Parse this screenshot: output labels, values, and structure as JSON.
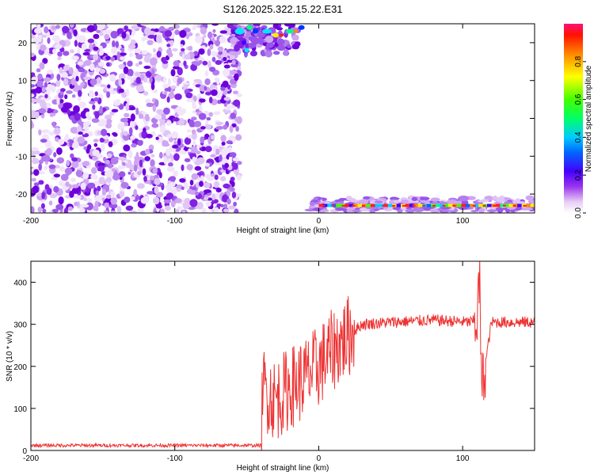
{
  "chart_data": [
    {
      "type": "heatmap",
      "title": "S126.2025.322.15.22.E31",
      "xlabel": "Height of straight line (km)",
      "ylabel": "Frequency (Hz)",
      "xlim": [
        -200,
        150
      ],
      "ylim": [
        -25,
        25
      ],
      "xticks": [
        -200,
        -100,
        0,
        100
      ],
      "yticks": [
        -20,
        -10,
        0,
        10,
        20
      ],
      "colorbar": {
        "label": "Normalized spectral amplitude",
        "range": [
          0,
          1
        ],
        "ticks": [
          0.0,
          0.2,
          0.4,
          0.6,
          0.8
        ]
      },
      "regions": [
        {
          "x_range": [
            -200,
            -55
          ],
          "f_range": [
            -25,
            25
          ],
          "amplitude": "low (0.05-0.2)"
        },
        {
          "x_range": [
            -60,
            -10
          ],
          "f_range": [
            18,
            25
          ],
          "amplitude": "up to 0.9"
        },
        {
          "x_range": [
            -5,
            150
          ],
          "f_range": [
            -25,
            -21
          ],
          "amplitude": "up to 0.9"
        }
      ],
      "colors": {
        "low": "#cc99ee",
        "mid": "#7b00e0",
        "high": "#ff2020"
      }
    },
    {
      "type": "line",
      "xlabel": "Height of straight line (km)",
      "ylabel": "SNR (10 * v/v)",
      "xlim": [
        -200,
        150
      ],
      "ylim": [
        0,
        450
      ],
      "xticks": [
        -200,
        -100,
        0,
        100
      ],
      "yticks": [
        0,
        100,
        200,
        300,
        400
      ],
      "color": "#ee3333",
      "series_trend": [
        {
          "x": -200,
          "y": 12
        },
        {
          "x": -100,
          "y": 12
        },
        {
          "x": -40,
          "y": 12
        },
        {
          "x": -39,
          "y": 150
        },
        {
          "x": -30,
          "y": 120
        },
        {
          "x": -20,
          "y": 150
        },
        {
          "x": -10,
          "y": 170
        },
        {
          "x": 0,
          "y": 200
        },
        {
          "x": 10,
          "y": 240
        },
        {
          "x": 20,
          "y": 270
        },
        {
          "x": 30,
          "y": 300
        },
        {
          "x": 50,
          "y": 305
        },
        {
          "x": 80,
          "y": 310
        },
        {
          "x": 105,
          "y": 305
        },
        {
          "x": 110,
          "y": 310
        },
        {
          "x": 112,
          "y": 430
        },
        {
          "x": 113,
          "y": 140
        },
        {
          "x": 120,
          "y": 305
        },
        {
          "x": 150,
          "y": 305
        }
      ]
    }
  ]
}
